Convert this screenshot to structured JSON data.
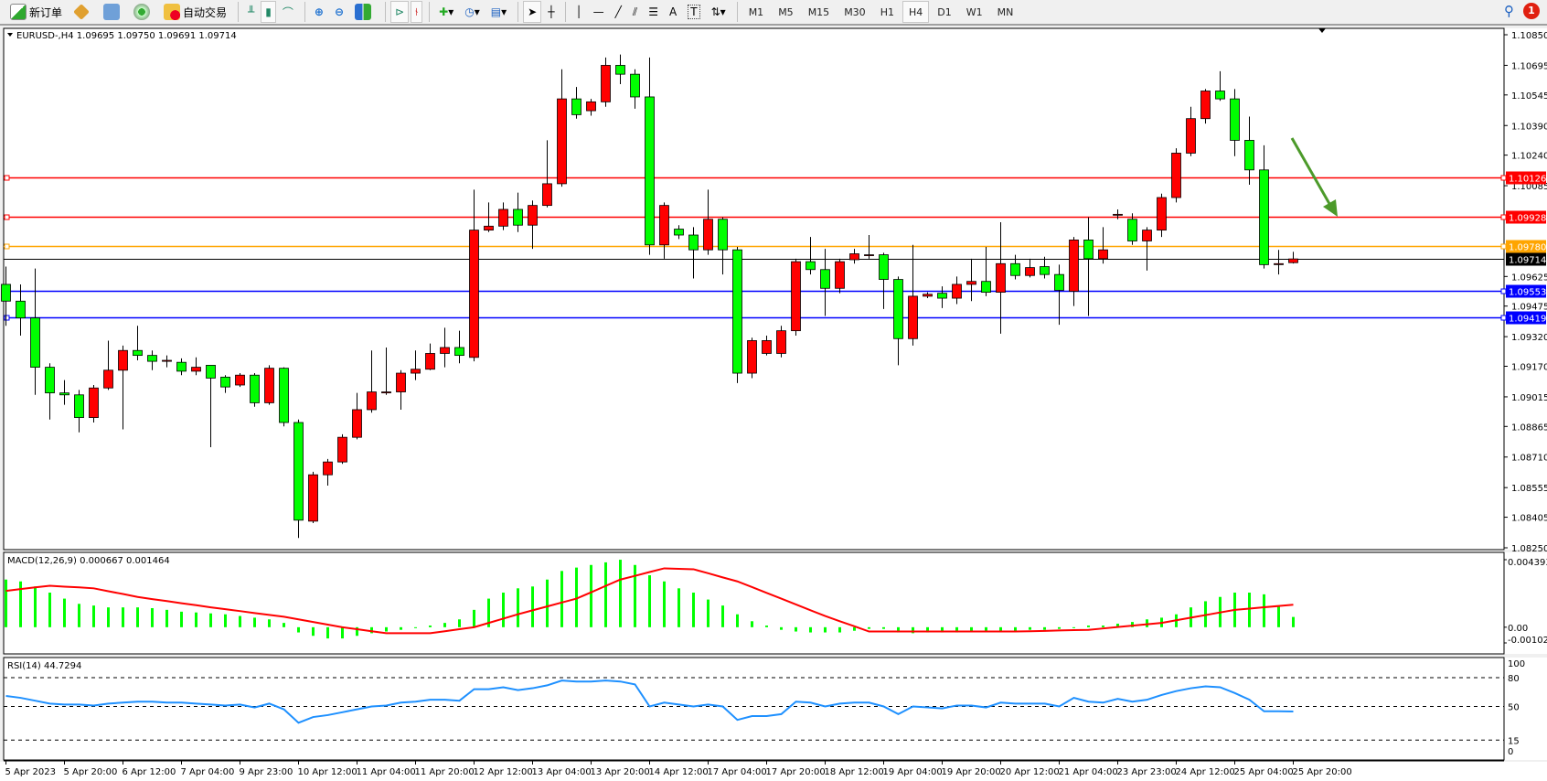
{
  "toolbar": {
    "new_order": "新订单",
    "auto_trading": "自动交易",
    "icons": [
      "new-order-icon",
      "market-watch-icon",
      "navigator-icon",
      "signals-icon",
      "auto-trading-icon",
      "bar-chart-icon",
      "candlestick-icon",
      "line-chart-icon",
      "zoom-in-icon",
      "zoom-out-icon",
      "tile-windows-icon",
      "auto-scroll-icon",
      "chart-shift-icon",
      "indicators-icon",
      "periods-icon",
      "templates-icon",
      "cursor-icon",
      "crosshair-icon",
      "vertical-line-icon",
      "horizontal-line-icon",
      "trendline-icon",
      "fibonacci-icon",
      "fibo-levels-icon",
      "text-icon",
      "text-label-icon",
      "arrows-icon"
    ],
    "text_tool": "A",
    "label_tool": "T",
    "timeframes": [
      "M1",
      "M5",
      "M15",
      "M30",
      "H1",
      "H4",
      "D1",
      "W1",
      "MN"
    ],
    "active_timeframe": "H4",
    "notification_count": "1"
  },
  "colors": {
    "bull": "#ff0000",
    "bear": "#00ff00",
    "macd_hist": "#00ff00",
    "signal": "#ff0000",
    "rsi": "#1e90ff",
    "arrow": "#4c9a2a"
  },
  "chart_data": {
    "type": "candlestick",
    "symbol_header": "EURUSD-,H4  1.09695 1.09750 1.09691 1.09714",
    "ylim": [
      1.0825,
      1.1085
    ],
    "price_ticks": [
      "1.10850",
      "1.10695",
      "1.10545",
      "1.10390",
      "1.10240",
      "1.10085",
      "1.09625",
      "1.09475",
      "1.09320",
      "1.09170",
      "1.09015",
      "1.08865",
      "1.08710",
      "1.08555",
      "1.08405",
      "1.08250"
    ],
    "time_labels": [
      "5 Apr 2023",
      "5 Apr 20:00",
      "6 Apr 12:00",
      "7 Apr 04:00",
      "9 Apr 23:00",
      "10 Apr 12:00",
      "11 Apr 04:00",
      "11 Apr 20:00",
      "12 Apr 12:00",
      "13 Apr 04:00",
      "13 Apr 20:00",
      "14 Apr 12:00",
      "17 Apr 04:00",
      "17 Apr 20:00",
      "18 Apr 12:00",
      "19 Apr 04:00",
      "19 Apr 20:00",
      "20 Apr 12:00",
      "21 Apr 04:00",
      "23 Apr 23:00",
      "24 Apr 12:00",
      "25 Apr 04:00",
      "25 Apr 20:00"
    ],
    "ohlc_fields": [
      "open",
      "high",
      "low",
      "close"
    ],
    "ohlc": [
      [
        1.09585,
        1.09675,
        1.09375,
        1.095
      ],
      [
        1.095,
        1.09585,
        1.09325,
        1.09415
      ],
      [
        1.09415,
        1.09665,
        1.09025,
        1.09165
      ],
      [
        1.09165,
        1.09185,
        1.089,
        1.09035
      ],
      [
        1.09035,
        1.091,
        1.08975,
        1.09025
      ],
      [
        1.09025,
        1.0905,
        1.08835,
        1.0891
      ],
      [
        1.0891,
        1.09075,
        1.08885,
        1.0906
      ],
      [
        1.0906,
        1.093,
        1.0905,
        1.0915
      ],
      [
        1.0915,
        1.09275,
        1.0885,
        1.0925
      ],
      [
        1.0925,
        1.09375,
        1.092,
        1.09225
      ],
      [
        1.09225,
        1.0925,
        1.0915,
        1.09195
      ],
      [
        1.09195,
        1.09225,
        1.09165,
        1.092
      ],
      [
        1.0919,
        1.0921,
        1.09125,
        1.09145
      ],
      [
        1.09145,
        1.09215,
        1.09125,
        1.09165
      ],
      [
        1.09175,
        1.09175,
        1.0876,
        1.0911
      ],
      [
        1.09115,
        1.09125,
        1.09035,
        1.09065
      ],
      [
        1.09075,
        1.09135,
        1.09065,
        1.09125
      ],
      [
        1.09125,
        1.09135,
        1.08965,
        1.08985
      ],
      [
        1.08985,
        1.09175,
        1.08975,
        1.0916
      ],
      [
        1.0916,
        1.09165,
        1.08865,
        1.08885
      ],
      [
        1.08885,
        1.089,
        1.083,
        1.0839
      ],
      [
        1.08385,
        1.08635,
        1.08375,
        1.0862
      ],
      [
        1.0862,
        1.087,
        1.08565,
        1.08685
      ],
      [
        1.08685,
        1.08825,
        1.08675,
        1.0881
      ],
      [
        1.0881,
        1.09035,
        1.088,
        1.0895
      ],
      [
        1.0895,
        1.0925,
        1.08935,
        1.0904
      ],
      [
        1.09035,
        1.09265,
        1.09025,
        1.0904
      ],
      [
        1.0904,
        1.0915,
        1.0895,
        1.09135
      ],
      [
        1.09135,
        1.0925,
        1.091,
        1.09155
      ],
      [
        1.09155,
        1.09285,
        1.0915,
        1.09235
      ],
      [
        1.09235,
        1.09365,
        1.09165,
        1.09265
      ],
      [
        1.09265,
        1.0935,
        1.09185,
        1.09225
      ],
      [
        1.09215,
        1.10065,
        1.09195,
        1.0986
      ],
      [
        1.0986,
        1.1,
        1.0985,
        1.0988
      ],
      [
        1.0988,
        1.1,
        1.0986,
        1.09965
      ],
      [
        1.09965,
        1.1005,
        1.0985,
        1.09885
      ],
      [
        1.09885,
        1.1001,
        1.09765,
        1.09985
      ],
      [
        1.09985,
        1.10315,
        1.09975,
        1.10095
      ],
      [
        1.10095,
        1.10675,
        1.1008,
        1.10525
      ],
      [
        1.10525,
        1.10585,
        1.10425,
        1.10445
      ],
      [
        1.10465,
        1.10525,
        1.1044,
        1.1051
      ],
      [
        1.1051,
        1.10735,
        1.10485,
        1.10695
      ],
      [
        1.10695,
        1.1075,
        1.106,
        1.1065
      ],
      [
        1.1065,
        1.10675,
        1.10475,
        1.10535
      ],
      [
        1.10535,
        1.10735,
        1.09735,
        1.09785
      ],
      [
        1.09785,
        1.1,
        1.09715,
        1.09985
      ],
      [
        1.09865,
        1.09885,
        1.09815,
        1.09835
      ],
      [
        1.09835,
        1.09875,
        1.09615,
        1.0976
      ],
      [
        1.0976,
        1.10065,
        1.09735,
        1.09915
      ],
      [
        1.09915,
        1.09925,
        1.09635,
        1.0976
      ],
      [
        1.0976,
        1.09775,
        1.09085,
        1.09135
      ],
      [
        1.09135,
        1.09315,
        1.0911,
        1.093
      ],
      [
        1.09235,
        1.09325,
        1.09225,
        1.093
      ],
      [
        1.09235,
        1.09375,
        1.09215,
        1.0935
      ],
      [
        1.0935,
        1.09715,
        1.09325,
        1.097
      ],
      [
        1.097,
        1.09825,
        1.09635,
        1.0966
      ],
      [
        1.0966,
        1.09765,
        1.09425,
        1.09565
      ],
      [
        1.09565,
        1.09715,
        1.0954,
        1.097
      ],
      [
        1.0971,
        1.09765,
        1.0969,
        1.0974
      ],
      [
        1.09735,
        1.09835,
        1.09715,
        1.09735
      ],
      [
        1.09735,
        1.09745,
        1.0946,
        1.0961
      ],
      [
        1.0961,
        1.09625,
        1.09175,
        1.0931
      ],
      [
        1.0931,
        1.09785,
        1.09275,
        1.09525
      ],
      [
        1.09525,
        1.09545,
        1.09515,
        1.09535
      ],
      [
        1.0954,
        1.09575,
        1.09465,
        1.09515
      ],
      [
        1.09515,
        1.09625,
        1.09485,
        1.09585
      ],
      [
        1.09585,
        1.09715,
        1.095,
        1.096
      ],
      [
        1.096,
        1.09775,
        1.09525,
        1.09545
      ],
      [
        1.09545,
        1.099,
        1.09335,
        1.0969
      ],
      [
        1.0969,
        1.09735,
        1.0961,
        1.0963
      ],
      [
        1.0963,
        1.09715,
        1.0962,
        1.0967
      ],
      [
        1.09675,
        1.09725,
        1.09615,
        1.09635
      ],
      [
        1.09635,
        1.09685,
        1.0938,
        1.09555
      ],
      [
        1.0955,
        1.09825,
        1.09475,
        1.0981
      ],
      [
        1.0981,
        1.09925,
        1.09425,
        1.09715
      ],
      [
        1.09715,
        1.09875,
        1.0969,
        1.0976
      ],
      [
        1.0994,
        1.09965,
        1.09915,
        1.0994
      ],
      [
        1.09915,
        1.09945,
        1.09785,
        1.09805
      ],
      [
        1.09805,
        1.09875,
        1.09655,
        1.0986
      ],
      [
        1.0986,
        1.10045,
        1.09825,
        1.10025
      ],
      [
        1.10025,
        1.10275,
        1.1,
        1.1025
      ],
      [
        1.1025,
        1.10485,
        1.10235,
        1.10425
      ],
      [
        1.10425,
        1.10575,
        1.104,
        1.10565
      ],
      [
        1.10565,
        1.10665,
        1.10515,
        1.10525
      ],
      [
        1.10525,
        1.10575,
        1.10235,
        1.10315
      ],
      [
        1.10315,
        1.10435,
        1.1009,
        1.10165
      ],
      [
        1.10165,
        1.1029,
        1.09665,
        1.09685
      ],
      [
        1.09685,
        1.0976,
        1.09635,
        1.0969
      ],
      [
        1.09695,
        1.0975,
        1.09691,
        1.09714
      ]
    ],
    "levels": [
      {
        "price": 1.10126,
        "label": "1.10126",
        "color": "#ff0000"
      },
      {
        "price": 1.09928,
        "label": "1.09928",
        "color": "#ff0000"
      },
      {
        "price": 1.0978,
        "label": "1.09780",
        "color": "#ffa500"
      },
      {
        "price": 1.09714,
        "label": "1.09714",
        "color": "#000000"
      },
      {
        "price": 1.09553,
        "label": "1.09553",
        "color": "#0000ff"
      },
      {
        "price": 1.09419,
        "label": "1.09419",
        "color": "#0000ff"
      }
    ],
    "annotation": {
      "type": "arrow",
      "direction": "down-right",
      "color": "#4c9a2a"
    },
    "macd": {
      "label": "MACD(12,26,9) 0.000667 0.001464",
      "ylim": [
        -0.001021,
        0.004393
      ],
      "ticks": [
        "0.004393",
        "0.00",
        "-0.001021"
      ],
      "histogram": [
        0.0031,
        0.00298,
        0.00265,
        0.00225,
        0.00186,
        0.00152,
        0.00141,
        0.00129,
        0.00129,
        0.00129,
        0.00124,
        0.00113,
        0.00101,
        0.00096,
        0.0009,
        0.00084,
        0.00073,
        0.00062,
        0.00051,
        0.00028,
        -0.00034,
        -0.00056,
        -0.00073,
        -0.00073,
        -0.00056,
        -0.00039,
        -0.00028,
        -0.00017,
        -6e-05,
        0.00011,
        0.00028,
        0.00051,
        0.00113,
        0.00186,
        0.00225,
        0.00253,
        0.00265,
        0.0031,
        0.00366,
        0.00388,
        0.00405,
        0.00422,
        0.00439,
        0.00405,
        0.00338,
        0.00298,
        0.00253,
        0.00225,
        0.0018,
        0.00141,
        0.00084,
        0.00039,
        0.00011,
        -0.00017,
        -0.00028,
        -0.00034,
        -0.00034,
        -0.00034,
        -0.00023,
        -0.00011,
        -0.00011,
        -0.00034,
        -0.00039,
        -0.00034,
        -0.00034,
        -0.00034,
        -0.00028,
        -0.00028,
        -0.00028,
        -0.00023,
        -0.00017,
        -0.00017,
        -0.00011,
        0.0,
        0.00011,
        0.00011,
        0.00023,
        0.00034,
        0.00051,
        0.00062,
        0.00084,
        0.00129,
        0.00169,
        0.00197,
        0.00225,
        0.00225,
        0.00214,
        0.00141,
        0.000667
      ],
      "signal": [
        0.00236,
        0.00248,
        0.00259,
        0.0027,
        0.00264,
        0.00259,
        0.00253,
        0.00234,
        0.00216,
        0.00197,
        0.00183,
        0.0017,
        0.00156,
        0.00143,
        0.00129,
        0.00117,
        0.00105,
        0.00092,
        0.0008,
        0.00068,
        0.00051,
        0.00034,
        0.00017,
        0.0,
        -0.00013,
        -0.00026,
        -0.00039,
        -0.00039,
        -0.00039,
        -0.00039,
        -0.00026,
        -0.00013,
        0.0,
        0.00028,
        0.00056,
        0.00084,
        0.0011,
        0.00135,
        0.00161,
        0.00186,
        0.00227,
        0.00269,
        0.0031,
        0.00334,
        0.00359,
        0.00383,
        0.0038,
        0.00377,
        0.00351,
        0.00324,
        0.00298,
        0.00261,
        0.00223,
        0.00186,
        0.00148,
        0.0011,
        0.00073,
        0.00039,
        6e-05,
        -0.00028,
        -0.00028,
        -0.00028,
        -0.00028,
        -0.00028,
        -0.00028,
        -0.00028,
        -0.00028,
        -0.00028,
        -0.00028,
        -0.00028,
        -0.00026,
        -0.00024,
        -0.00021,
        -0.00019,
        -0.00017,
        -8e-05,
        1e-05,
        0.0001,
        0.00019,
        0.00028,
        0.00045,
        0.00062,
        0.00079,
        0.00096,
        0.00113,
        0.00121,
        0.0013,
        0.00138,
        0.001464
      ]
    },
    "rsi": {
      "label": "RSI(14) 44.7294",
      "ylim": [
        0,
        100
      ],
      "ticks": [
        "100",
        "80",
        "50",
        "15",
        "0"
      ],
      "levels": [
        80,
        50,
        15
      ],
      "values": [
        61,
        59,
        56,
        53,
        52,
        52,
        51,
        53,
        54,
        55,
        55,
        54,
        54,
        53,
        52,
        51,
        52,
        49,
        53,
        47,
        33,
        39,
        41,
        44,
        47,
        50,
        51,
        54,
        55,
        57,
        57,
        56,
        68,
        68,
        70,
        67,
        69,
        72,
        77,
        76,
        76,
        77,
        76,
        73,
        50,
        54,
        52,
        50,
        52,
        50,
        36,
        40,
        40,
        42,
        55,
        54,
        50,
        53,
        54,
        54,
        50,
        42,
        50,
        49,
        48,
        51,
        51,
        49,
        54,
        53,
        53,
        53,
        50,
        59,
        55,
        54,
        58,
        55,
        57,
        62,
        66,
        69,
        71,
        70,
        64,
        57,
        45,
        45,
        44.7294
      ]
    }
  }
}
